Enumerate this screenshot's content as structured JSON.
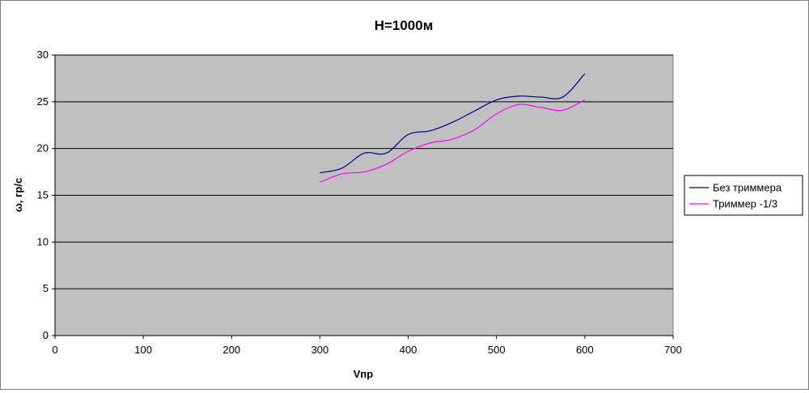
{
  "chart_data": {
    "type": "line",
    "title": "H=1000м",
    "xlabel": "Vпр",
    "ylabel": "ω, гр/с",
    "xlim": [
      0,
      700
    ],
    "ylim": [
      0,
      30
    ],
    "x_ticks": [
      0,
      100,
      200,
      300,
      400,
      500,
      600,
      700
    ],
    "y_ticks": [
      0,
      5,
      10,
      15,
      20,
      25,
      30
    ],
    "grid": "horizontal",
    "plot_background": "#c0c0c0",
    "legend_position": "right",
    "series": [
      {
        "name": "Без триммера",
        "color": "#000080",
        "points": [
          [
            300,
            17.4
          ],
          [
            325,
            17.9
          ],
          [
            350,
            19.5
          ],
          [
            375,
            19.5
          ],
          [
            400,
            21.5
          ],
          [
            425,
            21.9
          ],
          [
            450,
            22.8
          ],
          [
            475,
            24.0
          ],
          [
            500,
            25.2
          ],
          [
            525,
            25.6
          ],
          [
            550,
            25.5
          ],
          [
            575,
            25.5
          ],
          [
            600,
            28.0
          ]
        ]
      },
      {
        "name": "Триммер -1/3",
        "color": "#ff00ff",
        "points": [
          [
            300,
            16.4
          ],
          [
            325,
            17.3
          ],
          [
            350,
            17.5
          ],
          [
            375,
            18.3
          ],
          [
            400,
            19.7
          ],
          [
            425,
            20.6
          ],
          [
            450,
            21.0
          ],
          [
            475,
            22.0
          ],
          [
            500,
            23.7
          ],
          [
            525,
            24.7
          ],
          [
            550,
            24.4
          ],
          [
            575,
            24.1
          ],
          [
            600,
            25.2
          ]
        ]
      }
    ]
  }
}
